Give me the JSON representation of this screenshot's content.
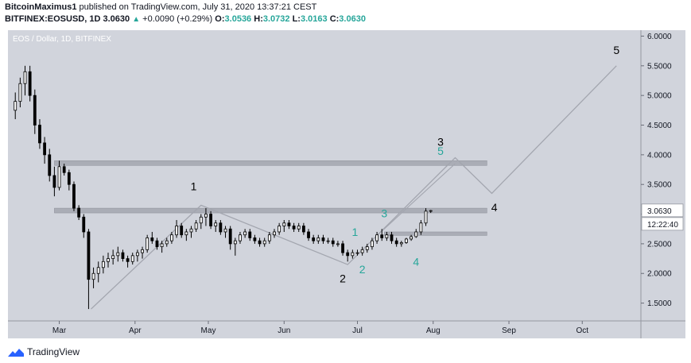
{
  "header": {
    "author": "BitcoinMaximus1",
    "published_text": "published on TradingView.com, July 31, 2020 13:37:21 CEST",
    "symbol": "BITFINEX:EOSUSD, 1D",
    "price": "3.0630",
    "change_arrow": "▲",
    "change": "+0.0090 (+0.29%)",
    "o_label": "O:",
    "o_value": "3.0536",
    "h_label": "H:",
    "h_value": "3.0732",
    "l_label": "L:",
    "l_value": "3.0163",
    "c_label": "C:",
    "c_value": "3.0630"
  },
  "chart_title": "EOS / Dollar, 1D, BITFINEX",
  "footer": {
    "brand": "TradingView"
  },
  "chart_data": {
    "type": "candlestick",
    "x_ticks": [
      "Mar",
      "Apr",
      "May",
      "Jun",
      "Jul",
      "Aug",
      "Sep",
      "Oct"
    ],
    "y_ticks": [
      "6.0000",
      "5.5000",
      "5.0000",
      "4.5000",
      "4.0000",
      "3.5000",
      "3.0000",
      "2.5000",
      "2.0000",
      "1.5000"
    ],
    "ylim": [
      1.2,
      6.1
    ],
    "grid": false,
    "last_price_label": "3.0630",
    "countdown_label": "12:22:40",
    "colors": {
      "plot_bg": "#d1d4dc",
      "candle": "#ffffff",
      "wick": "#000000",
      "zone": "#a3a6af",
      "path": "#a3a6af",
      "green_count": "#26a69a",
      "black_count": "#000000"
    },
    "candles": [
      {
        "date": "2020-02-12",
        "o": 4.75,
        "h": 5.05,
        "l": 4.6,
        "c": 4.9
      },
      {
        "date": "2020-02-14",
        "o": 4.9,
        "h": 5.3,
        "l": 4.8,
        "c": 5.2
      },
      {
        "date": "2020-02-16",
        "o": 5.2,
        "h": 5.5,
        "l": 5.0,
        "c": 5.4
      },
      {
        "date": "2020-02-18",
        "o": 5.4,
        "h": 5.5,
        "l": 4.9,
        "c": 5.0
      },
      {
        "date": "2020-02-20",
        "o": 5.0,
        "h": 5.1,
        "l": 4.35,
        "c": 4.5
      },
      {
        "date": "2020-02-22",
        "o": 4.5,
        "h": 4.6,
        "l": 4.1,
        "c": 4.2
      },
      {
        "date": "2020-02-24",
        "o": 4.2,
        "h": 4.3,
        "l": 3.85,
        "c": 4.0
      },
      {
        "date": "2020-02-26",
        "o": 4.0,
        "h": 4.1,
        "l": 3.55,
        "c": 3.65
      },
      {
        "date": "2020-02-28",
        "o": 3.65,
        "h": 3.8,
        "l": 3.3,
        "c": 3.45
      },
      {
        "date": "2020-03-01",
        "o": 3.45,
        "h": 3.9,
        "l": 3.4,
        "c": 3.8
      },
      {
        "date": "2020-03-03",
        "o": 3.8,
        "h": 3.85,
        "l": 3.65,
        "c": 3.7
      },
      {
        "date": "2020-03-05",
        "o": 3.7,
        "h": 3.75,
        "l": 3.4,
        "c": 3.5
      },
      {
        "date": "2020-03-07",
        "o": 3.5,
        "h": 3.55,
        "l": 3.05,
        "c": 3.1
      },
      {
        "date": "2020-03-09",
        "o": 3.1,
        "h": 3.15,
        "l": 2.9,
        "c": 2.95
      },
      {
        "date": "2020-03-11",
        "o": 2.95,
        "h": 3.0,
        "l": 2.6,
        "c": 2.7
      },
      {
        "date": "2020-03-13",
        "o": 2.7,
        "h": 2.75,
        "l": 1.4,
        "c": 1.9
      },
      {
        "date": "2020-03-15",
        "o": 1.9,
        "h": 2.1,
        "l": 1.75,
        "c": 2.0
      },
      {
        "date": "2020-03-17",
        "o": 2.0,
        "h": 2.2,
        "l": 1.85,
        "c": 2.1
      },
      {
        "date": "2020-03-19",
        "o": 2.1,
        "h": 2.3,
        "l": 2.0,
        "c": 2.2
      },
      {
        "date": "2020-03-21",
        "o": 2.2,
        "h": 2.35,
        "l": 2.1,
        "c": 2.25
      },
      {
        "date": "2020-03-23",
        "o": 2.25,
        "h": 2.4,
        "l": 2.15,
        "c": 2.3
      },
      {
        "date": "2020-03-25",
        "o": 2.3,
        "h": 2.45,
        "l": 2.2,
        "c": 2.35
      },
      {
        "date": "2020-03-27",
        "o": 2.35,
        "h": 2.4,
        "l": 2.2,
        "c": 2.25
      },
      {
        "date": "2020-03-29",
        "o": 2.25,
        "h": 2.3,
        "l": 2.1,
        "c": 2.2
      },
      {
        "date": "2020-03-31",
        "o": 2.2,
        "h": 2.35,
        "l": 2.15,
        "c": 2.3
      },
      {
        "date": "2020-04-02",
        "o": 2.3,
        "h": 2.4,
        "l": 2.2,
        "c": 2.35
      },
      {
        "date": "2020-04-04",
        "o": 2.35,
        "h": 2.45,
        "l": 2.25,
        "c": 2.4
      },
      {
        "date": "2020-04-06",
        "o": 2.4,
        "h": 2.65,
        "l": 2.35,
        "c": 2.6
      },
      {
        "date": "2020-04-08",
        "o": 2.6,
        "h": 2.7,
        "l": 2.5,
        "c": 2.55
      },
      {
        "date": "2020-04-10",
        "o": 2.55,
        "h": 2.6,
        "l": 2.4,
        "c": 2.45
      },
      {
        "date": "2020-04-12",
        "o": 2.45,
        "h": 2.55,
        "l": 2.35,
        "c": 2.5
      },
      {
        "date": "2020-04-14",
        "o": 2.5,
        "h": 2.6,
        "l": 2.45,
        "c": 2.55
      },
      {
        "date": "2020-04-16",
        "o": 2.55,
        "h": 2.7,
        "l": 2.5,
        "c": 2.65
      },
      {
        "date": "2020-04-18",
        "o": 2.65,
        "h": 2.9,
        "l": 2.6,
        "c": 2.8
      },
      {
        "date": "2020-04-20",
        "o": 2.8,
        "h": 2.85,
        "l": 2.6,
        "c": 2.65
      },
      {
        "date": "2020-04-22",
        "o": 2.65,
        "h": 2.75,
        "l": 2.55,
        "c": 2.7
      },
      {
        "date": "2020-04-24",
        "o": 2.7,
        "h": 2.8,
        "l": 2.6,
        "c": 2.75
      },
      {
        "date": "2020-04-26",
        "o": 2.75,
        "h": 2.9,
        "l": 2.7,
        "c": 2.85
      },
      {
        "date": "2020-04-28",
        "o": 2.85,
        "h": 3.0,
        "l": 2.75,
        "c": 2.95
      },
      {
        "date": "2020-04-30",
        "o": 2.95,
        "h": 3.1,
        "l": 2.8,
        "c": 3.0
      },
      {
        "date": "2020-05-02",
        "o": 3.0,
        "h": 3.05,
        "l": 2.75,
        "c": 2.8
      },
      {
        "date": "2020-05-04",
        "o": 2.8,
        "h": 2.9,
        "l": 2.7,
        "c": 2.85
      },
      {
        "date": "2020-05-06",
        "o": 2.85,
        "h": 2.9,
        "l": 2.65,
        "c": 2.7
      },
      {
        "date": "2020-05-08",
        "o": 2.7,
        "h": 2.8,
        "l": 2.6,
        "c": 2.75
      },
      {
        "date": "2020-05-10",
        "o": 2.75,
        "h": 2.8,
        "l": 2.4,
        "c": 2.5
      },
      {
        "date": "2020-05-12",
        "o": 2.5,
        "h": 2.6,
        "l": 2.3,
        "c": 2.55
      },
      {
        "date": "2020-05-14",
        "o": 2.55,
        "h": 2.7,
        "l": 2.5,
        "c": 2.65
      },
      {
        "date": "2020-05-16",
        "o": 2.65,
        "h": 2.75,
        "l": 2.6,
        "c": 2.7
      },
      {
        "date": "2020-05-18",
        "o": 2.7,
        "h": 2.75,
        "l": 2.55,
        "c": 2.6
      },
      {
        "date": "2020-05-20",
        "o": 2.6,
        "h": 2.65,
        "l": 2.5,
        "c": 2.55
      },
      {
        "date": "2020-05-22",
        "o": 2.55,
        "h": 2.6,
        "l": 2.45,
        "c": 2.5
      },
      {
        "date": "2020-05-24",
        "o": 2.5,
        "h": 2.6,
        "l": 2.45,
        "c": 2.55
      },
      {
        "date": "2020-05-26",
        "o": 2.55,
        "h": 2.7,
        "l": 2.5,
        "c": 2.65
      },
      {
        "date": "2020-05-28",
        "o": 2.65,
        "h": 2.75,
        "l": 2.6,
        "c": 2.7
      },
      {
        "date": "2020-05-30",
        "o": 2.7,
        "h": 2.85,
        "l": 2.65,
        "c": 2.8
      },
      {
        "date": "2020-06-01",
        "o": 2.8,
        "h": 2.9,
        "l": 2.7,
        "c": 2.85
      },
      {
        "date": "2020-06-03",
        "o": 2.85,
        "h": 2.9,
        "l": 2.75,
        "c": 2.8
      },
      {
        "date": "2020-06-05",
        "o": 2.8,
        "h": 2.85,
        "l": 2.7,
        "c": 2.75
      },
      {
        "date": "2020-06-07",
        "o": 2.75,
        "h": 2.85,
        "l": 2.7,
        "c": 2.8
      },
      {
        "date": "2020-06-09",
        "o": 2.8,
        "h": 2.85,
        "l": 2.65,
        "c": 2.7
      },
      {
        "date": "2020-06-11",
        "o": 2.7,
        "h": 2.75,
        "l": 2.55,
        "c": 2.6
      },
      {
        "date": "2020-06-13",
        "o": 2.6,
        "h": 2.65,
        "l": 2.5,
        "c": 2.55
      },
      {
        "date": "2020-06-15",
        "o": 2.55,
        "h": 2.65,
        "l": 2.5,
        "c": 2.6
      },
      {
        "date": "2020-06-17",
        "o": 2.6,
        "h": 2.65,
        "l": 2.5,
        "c": 2.55
      },
      {
        "date": "2020-06-19",
        "o": 2.55,
        "h": 2.6,
        "l": 2.5,
        "c": 2.55
      },
      {
        "date": "2020-06-21",
        "o": 2.55,
        "h": 2.6,
        "l": 2.45,
        "c": 2.5
      },
      {
        "date": "2020-06-23",
        "o": 2.5,
        "h": 2.55,
        "l": 2.45,
        "c": 2.5
      },
      {
        "date": "2020-06-25",
        "o": 2.5,
        "h": 2.55,
        "l": 2.3,
        "c": 2.35
      },
      {
        "date": "2020-06-27",
        "o": 2.35,
        "h": 2.4,
        "l": 2.2,
        "c": 2.3
      },
      {
        "date": "2020-06-29",
        "o": 2.3,
        "h": 2.4,
        "l": 2.25,
        "c": 2.35
      },
      {
        "date": "2020-07-01",
        "o": 2.35,
        "h": 2.4,
        "l": 2.3,
        "c": 2.35
      },
      {
        "date": "2020-07-03",
        "o": 2.35,
        "h": 2.45,
        "l": 2.3,
        "c": 2.4
      },
      {
        "date": "2020-07-05",
        "o": 2.4,
        "h": 2.5,
        "l": 2.35,
        "c": 2.45
      },
      {
        "date": "2020-07-07",
        "o": 2.45,
        "h": 2.6,
        "l": 2.4,
        "c": 2.55
      },
      {
        "date": "2020-07-09",
        "o": 2.55,
        "h": 2.7,
        "l": 2.5,
        "c": 2.65
      },
      {
        "date": "2020-07-11",
        "o": 2.65,
        "h": 2.75,
        "l": 2.55,
        "c": 2.6
      },
      {
        "date": "2020-07-13",
        "o": 2.6,
        "h": 2.7,
        "l": 2.55,
        "c": 2.65
      },
      {
        "date": "2020-07-15",
        "o": 2.65,
        "h": 2.7,
        "l": 2.5,
        "c": 2.55
      },
      {
        "date": "2020-07-17",
        "o": 2.55,
        "h": 2.6,
        "l": 2.45,
        "c": 2.5
      },
      {
        "date": "2020-07-19",
        "o": 2.5,
        "h": 2.55,
        "l": 2.45,
        "c": 2.52
      },
      {
        "date": "2020-07-21",
        "o": 2.52,
        "h": 2.6,
        "l": 2.5,
        "c": 2.58
      },
      {
        "date": "2020-07-23",
        "o": 2.58,
        "h": 2.65,
        "l": 2.55,
        "c": 2.62
      },
      {
        "date": "2020-07-25",
        "o": 2.62,
        "h": 2.75,
        "l": 2.6,
        "c": 2.7
      },
      {
        "date": "2020-07-27",
        "o": 2.7,
        "h": 2.9,
        "l": 2.65,
        "c": 2.85
      },
      {
        "date": "2020-07-29",
        "o": 2.85,
        "h": 3.1,
        "l": 2.8,
        "c": 3.05
      },
      {
        "date": "2020-07-31",
        "o": 3.05,
        "h": 3.07,
        "l": 3.02,
        "c": 3.06
      }
    ],
    "zones": [
      {
        "from": "2020-02-28",
        "to": "2020-08-23",
        "y_low": 3.82,
        "y_high": 3.9
      },
      {
        "from": "2020-02-28",
        "to": "2020-08-23",
        "y_low": 3.02,
        "y_high": 3.1
      },
      {
        "from": "2020-07-12",
        "to": "2020-08-23",
        "y_low": 2.64,
        "y_high": 2.7
      }
    ],
    "path": [
      {
        "date": "2020-03-14",
        "y": 1.4
      },
      {
        "date": "2020-04-28",
        "y": 3.15
      },
      {
        "date": "2020-06-27",
        "y": 2.15
      },
      {
        "date": "2020-08-10",
        "y": 3.95
      },
      {
        "date": "2020-08-25",
        "y": 3.35
      },
      {
        "date": "2020-10-15",
        "y": 5.5
      }
    ],
    "path_small": [
      {
        "date": "2020-07-08",
        "y": 2.6
      },
      {
        "date": "2020-08-10",
        "y": 3.85
      }
    ],
    "labels": [
      {
        "text": "1",
        "date": "2020-04-25",
        "y": 3.4,
        "color": "black_count"
      },
      {
        "text": "2",
        "date": "2020-06-25",
        "y": 1.85,
        "color": "black_count"
      },
      {
        "text": "3",
        "date": "2020-08-04",
        "y": 4.15,
        "color": "black_count"
      },
      {
        "text": "4",
        "date": "2020-08-26",
        "y": 3.05,
        "color": "black_count"
      },
      {
        "text": "5",
        "date": "2020-10-15",
        "y": 5.7,
        "color": "black_count"
      },
      {
        "text": "1",
        "date": "2020-06-30",
        "y": 2.63,
        "color": "green_count"
      },
      {
        "text": "2",
        "date": "2020-07-03",
        "y": 2.0,
        "color": "green_count"
      },
      {
        "text": "3",
        "date": "2020-07-12",
        "y": 2.95,
        "color": "green_count"
      },
      {
        "text": "4",
        "date": "2020-07-25",
        "y": 2.13,
        "color": "green_count"
      },
      {
        "text": "5",
        "date": "2020-08-04",
        "y": 4.0,
        "color": "green_count"
      }
    ]
  }
}
